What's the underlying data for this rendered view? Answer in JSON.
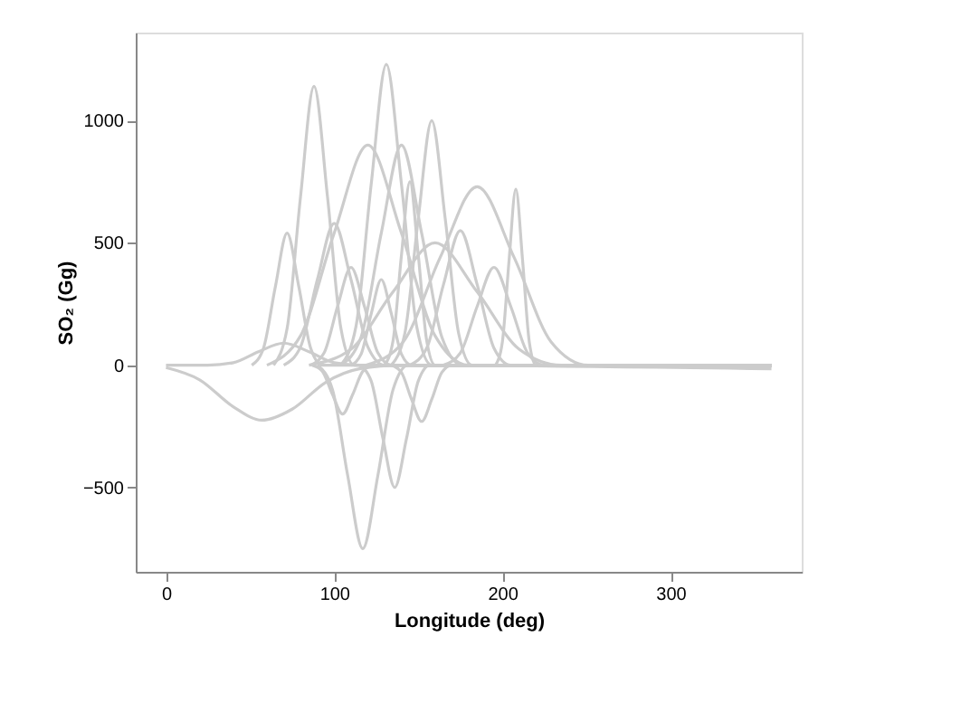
{
  "chart_data": {
    "type": "line",
    "xlabel": "Longitude (deg)",
    "ylabel": "SO₂ (Gg)",
    "xlim": [
      -18,
      378
    ],
    "ylim": [
      -845,
      1360
    ],
    "xticks": [
      0,
      100,
      200,
      300
    ],
    "yticks": [
      {
        "value": -500,
        "label": "−500"
      },
      0,
      500,
      1000
    ],
    "grid": false,
    "legend": false,
    "marker": "none",
    "line_style": "solid",
    "series": [
      {
        "color": "#cccccc",
        "x": [
          0,
          20,
          40,
          57,
          75,
          95,
          115,
          140,
          360
        ],
        "values": [
          -10,
          -60,
          -170,
          -225,
          -180,
          -70,
          -15,
          0,
          -15
        ]
      },
      {
        "color": "#cccccc",
        "x": [
          64,
          72,
          80,
          88,
          96,
          104,
          112,
          360
        ],
        "values": [
          0,
          150,
          690,
          1140,
          690,
          150,
          0,
          0
        ]
      },
      {
        "color": "#cccccc",
        "x": [
          104,
          113,
          122,
          131,
          140,
          149,
          158,
          360
        ],
        "values": [
          0,
          160,
          740,
          1230,
          740,
          160,
          0,
          0
        ]
      },
      {
        "color": "#cccccc",
        "x": [
          134,
          142,
          150,
          158,
          166,
          174,
          182,
          360
        ],
        "values": [
          0,
          130,
          600,
          1000,
          600,
          130,
          0,
          0
        ]
      },
      {
        "color": "#cccccc",
        "x": [
          60,
          80,
          100,
          120,
          140,
          160,
          180,
          360
        ],
        "values": [
          0,
          120,
          540,
          900,
          540,
          120,
          0,
          0
        ]
      },
      {
        "color": "#cccccc",
        "x": [
          119,
          141,
          163,
          185,
          207,
          229,
          251,
          360
        ],
        "values": [
          0,
          95,
          440,
          730,
          440,
          95,
          0,
          0
        ]
      },
      {
        "color": "#cccccc",
        "x": [
          196,
          200,
          204,
          208,
          212,
          216,
          220,
          360
        ],
        "values": [
          0,
          95,
          430,
          720,
          430,
          95,
          0,
          0
        ]
      },
      {
        "color": "#cccccc",
        "x": [
          51,
          58,
          65,
          72,
          79,
          86,
          93,
          360
        ],
        "values": [
          0,
          70,
          320,
          540,
          320,
          70,
          0,
          0
        ]
      },
      {
        "color": "#cccccc",
        "x": [
          70,
          80,
          90,
          100,
          110,
          120,
          130,
          360
        ],
        "values": [
          0,
          75,
          350,
          580,
          350,
          75,
          0,
          0
        ]
      },
      {
        "color": "#cccccc",
        "x": [
          90,
          99,
          108,
          117,
          126,
          135,
          144,
          360
        ],
        "values": [
          0,
          -100,
          -450,
          -750,
          -450,
          -100,
          0,
          0
        ]
      },
      {
        "color": "#cccccc",
        "x": [
          115,
          122,
          129,
          136,
          143,
          150,
          157,
          360
        ],
        "values": [
          0,
          -65,
          -300,
          -500,
          -300,
          -65,
          0,
          0
        ]
      },
      {
        "color": "#cccccc",
        "x": [
          134,
          140,
          146,
          152,
          158,
          164,
          170,
          360
        ],
        "values": [
          0,
          -30,
          -140,
          -230,
          -140,
          -30,
          0,
          0
        ]
      },
      {
        "color": "#cccccc",
        "x": [
          87,
          93,
          99,
          105,
          111,
          117,
          123,
          360
        ],
        "values": [
          0,
          -25,
          -120,
          -200,
          -120,
          -25,
          0,
          0
        ]
      },
      {
        "color": "#cccccc",
        "x": [
          104,
          116,
          128,
          140,
          152,
          164,
          176,
          360
        ],
        "values": [
          0,
          115,
          540,
          900,
          540,
          115,
          0,
          0
        ]
      },
      {
        "color": "#cccccc",
        "x": [
          130,
          135,
          140,
          145,
          150,
          155,
          160,
          360
        ],
        "values": [
          0,
          100,
          450,
          750,
          450,
          100,
          0,
          0
        ]
      },
      {
        "color": "#cccccc",
        "x": [
          85,
          110,
          135,
          160,
          185,
          210,
          235,
          360
        ],
        "values": [
          0,
          65,
          300,
          500,
          300,
          65,
          0,
          0
        ]
      },
      {
        "color": "#cccccc",
        "x": [
          86,
          94,
          102,
          110,
          118,
          126,
          134,
          360
        ],
        "values": [
          0,
          50,
          240,
          400,
          240,
          50,
          0,
          0
        ]
      },
      {
        "color": "#cccccc",
        "x": [
          145,
          155,
          165,
          175,
          185,
          195,
          205,
          360
        ],
        "values": [
          0,
          70,
          330,
          550,
          330,
          70,
          0,
          0
        ]
      },
      {
        "color": "#cccccc",
        "x": [
          0,
          25,
          40,
          55,
          70,
          85,
          100,
          115,
          360
        ],
        "values": [
          0,
          0,
          10,
          55,
          90,
          55,
          10,
          0,
          0
        ]
      },
      {
        "color": "#cccccc",
        "x": [
          110,
          116,
          122,
          128,
          134,
          140,
          146,
          360
        ],
        "values": [
          0,
          45,
          210,
          350,
          210,
          45,
          0,
          0
        ]
      },
      {
        "color": "#cccccc",
        "x": [
          165,
          175,
          185,
          195,
          205,
          215,
          225,
          360
        ],
        "values": [
          0,
          50,
          240,
          400,
          240,
          50,
          0,
          0
        ]
      }
    ]
  }
}
